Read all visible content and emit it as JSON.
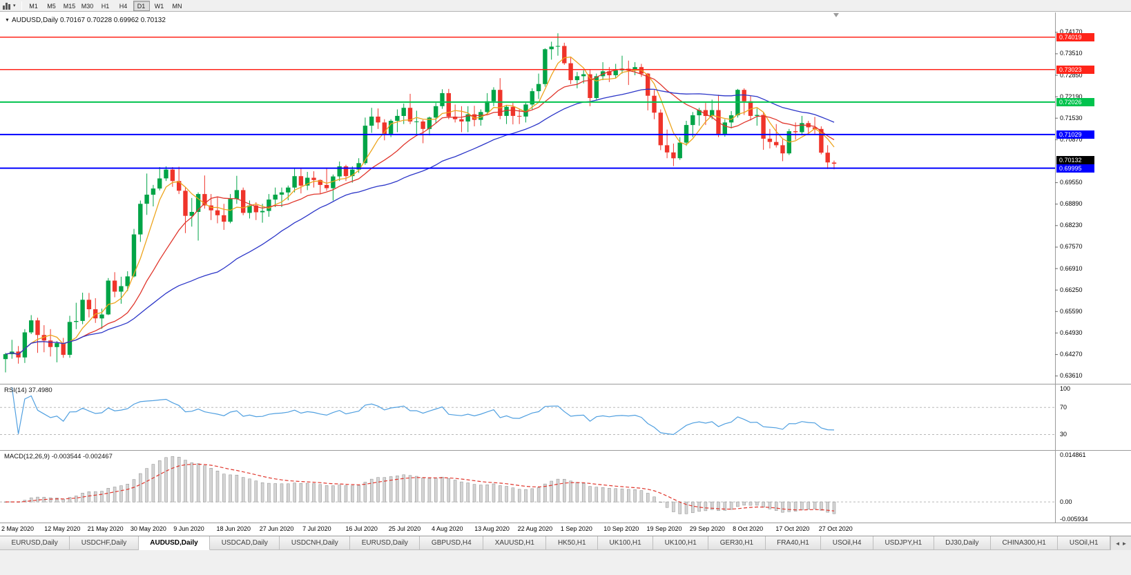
{
  "toolbar": {
    "timeframes": [
      "M1",
      "M5",
      "M15",
      "M30",
      "H1",
      "H4",
      "D1",
      "W1",
      "MN"
    ],
    "active_timeframe": "D1"
  },
  "chart": {
    "symbol_title": "AUDUSD,Daily",
    "ohlc_text": "0.70167 0.70228 0.69962 0.70132"
  },
  "chart_data": {
    "type": "candlestick",
    "title": "AUDUSD,Daily",
    "last_bar": {
      "open": "0.70167",
      "high": "0.70228",
      "low": "0.69962",
      "close": "0.70132"
    },
    "y_axis": {
      "range": [
        0.6337,
        0.7478
      ],
      "ticks": [
        "0.74170",
        "0.73510",
        "0.72850",
        "0.72190",
        "0.71530",
        "0.70870",
        "0.69550",
        "0.68890",
        "0.68230",
        "0.67570",
        "0.66910",
        "0.66250",
        "0.65590",
        "0.64930",
        "0.64270",
        "0.63610"
      ]
    },
    "x_axis": {
      "date_labels": [
        "2 May 2020",
        "12 May 2020",
        "21 May 2020",
        "30 May 2020",
        "9 Jun 2020",
        "18 Jun 2020",
        "27 Jun 2020",
        "7 Jul 2020",
        "16 Jul 2020",
        "25 Jul 2020",
        "4 Aug 2020",
        "13 Aug 2020",
        "22 Aug 2020",
        "1 Sep 2020",
        "10 Sep 2020",
        "19 Sep 2020",
        "29 Sep 2020",
        "8 Oct 2020",
        "17 Oct 2020",
        "27 Oct 2020"
      ]
    },
    "levels": [
      {
        "value": 0.74019,
        "label": "0.74019",
        "color": "#ff2419",
        "type": "resistance"
      },
      {
        "value": 0.73023,
        "label": "0.73023",
        "color": "#ff2419",
        "type": "resistance"
      },
      {
        "value": 0.72026,
        "label": "0.72026",
        "color": "#00c34d",
        "type": "pivot"
      },
      {
        "value": 0.71029,
        "label": "0.71029",
        "color": "#0000ff",
        "type": "support"
      },
      {
        "value": 0.69995,
        "label": "0.69995",
        "color": "#0000ff",
        "type": "support"
      }
    ],
    "current_price": {
      "value": 0.70132,
      "label": "0.70132",
      "color": "#000000"
    },
    "moving_averages": [
      {
        "period": 5,
        "color": "#eda41c"
      },
      {
        "period": 13,
        "color": "#e0352b"
      },
      {
        "period": 34,
        "color": "#2b35c8"
      }
    ],
    "candles": [
      [
        0.6413,
        0.6432,
        0.6372,
        0.6428
      ],
      [
        0.6428,
        0.6472,
        0.6414,
        0.6436
      ],
      [
        0.6436,
        0.6453,
        0.6399,
        0.6418
      ],
      [
        0.6418,
        0.6505,
        0.6401,
        0.6495
      ],
      [
        0.6495,
        0.6548,
        0.649,
        0.6532
      ],
      [
        0.6532,
        0.654,
        0.6432,
        0.6487
      ],
      [
        0.6487,
        0.6517,
        0.6434,
        0.647
      ],
      [
        0.647,
        0.6505,
        0.6421,
        0.645
      ],
      [
        0.645,
        0.6468,
        0.6403,
        0.6462
      ],
      [
        0.6462,
        0.6478,
        0.6417,
        0.6426
      ],
      [
        0.6426,
        0.6546,
        0.6417,
        0.6527
      ],
      [
        0.6527,
        0.6586,
        0.6505,
        0.653
      ],
      [
        0.653,
        0.6617,
        0.652,
        0.6595
      ],
      [
        0.6595,
        0.6616,
        0.6541,
        0.6566
      ],
      [
        0.6566,
        0.66,
        0.6524,
        0.6538
      ],
      [
        0.6538,
        0.6568,
        0.6506,
        0.655
      ],
      [
        0.655,
        0.6662,
        0.6548,
        0.6654
      ],
      [
        0.6654,
        0.668,
        0.6603,
        0.662
      ],
      [
        0.662,
        0.6666,
        0.6583,
        0.6637
      ],
      [
        0.6637,
        0.6683,
        0.6622,
        0.6667
      ],
      [
        0.6667,
        0.6813,
        0.6664,
        0.6796
      ],
      [
        0.6796,
        0.69,
        0.6773,
        0.689
      ],
      [
        0.689,
        0.6983,
        0.6856,
        0.6918
      ],
      [
        0.6918,
        0.6948,
        0.6882,
        0.6937
      ],
      [
        0.6937,
        0.7003,
        0.6931,
        0.6968
      ],
      [
        0.6968,
        0.7005,
        0.696,
        0.6995
      ],
      [
        0.6995,
        0.7003,
        0.6942,
        0.696
      ],
      [
        0.696,
        0.7004,
        0.692,
        0.693
      ],
      [
        0.693,
        0.694,
        0.68,
        0.6853
      ],
      [
        0.6853,
        0.6908,
        0.682,
        0.6865
      ],
      [
        0.6865,
        0.6925,
        0.6777,
        0.692
      ],
      [
        0.692,
        0.6977,
        0.6875,
        0.6885
      ],
      [
        0.6885,
        0.692,
        0.684,
        0.687
      ],
      [
        0.687,
        0.691,
        0.683,
        0.6855
      ],
      [
        0.6855,
        0.689,
        0.681,
        0.6835
      ],
      [
        0.6835,
        0.692,
        0.683,
        0.6905
      ],
      [
        0.6905,
        0.6976,
        0.689,
        0.6932
      ],
      [
        0.6932,
        0.694,
        0.6855,
        0.6862
      ],
      [
        0.6862,
        0.69,
        0.6845,
        0.6885
      ],
      [
        0.6885,
        0.6895,
        0.684,
        0.6864
      ],
      [
        0.6864,
        0.689,
        0.6832,
        0.6868
      ],
      [
        0.6868,
        0.692,
        0.685,
        0.6903
      ],
      [
        0.6903,
        0.694,
        0.688,
        0.6918
      ],
      [
        0.6918,
        0.694,
        0.688,
        0.6925
      ],
      [
        0.6925,
        0.6946,
        0.6901,
        0.694
      ],
      [
        0.694,
        0.6998,
        0.6925,
        0.6975
      ],
      [
        0.6975,
        0.6998,
        0.6922,
        0.6946
      ],
      [
        0.6946,
        0.6988,
        0.6932,
        0.697
      ],
      [
        0.697,
        0.699,
        0.694,
        0.6963
      ],
      [
        0.6963,
        0.6965,
        0.692,
        0.6948
      ],
      [
        0.6948,
        0.7,
        0.693,
        0.6938
      ],
      [
        0.6938,
        0.698,
        0.69,
        0.6974
      ],
      [
        0.6974,
        0.702,
        0.696,
        0.7005
      ],
      [
        0.7005,
        0.701,
        0.696,
        0.6975
      ],
      [
        0.6975,
        0.7005,
        0.6955,
        0.6995
      ],
      [
        0.6995,
        0.703,
        0.6985,
        0.7015
      ],
      [
        0.7015,
        0.7155,
        0.701,
        0.713
      ],
      [
        0.713,
        0.7185,
        0.7108,
        0.7158
      ],
      [
        0.7158,
        0.7183,
        0.712,
        0.714
      ],
      [
        0.714,
        0.715,
        0.7085,
        0.7105
      ],
      [
        0.7105,
        0.715,
        0.7095,
        0.7145
      ],
      [
        0.7145,
        0.718,
        0.711,
        0.716
      ],
      [
        0.716,
        0.7198,
        0.7135,
        0.7185
      ],
      [
        0.7185,
        0.7228,
        0.7135,
        0.7143
      ],
      [
        0.7143,
        0.7176,
        0.7103,
        0.7143
      ],
      [
        0.7143,
        0.7148,
        0.7076,
        0.712
      ],
      [
        0.712,
        0.7158,
        0.71,
        0.7155
      ],
      [
        0.7155,
        0.72,
        0.7138,
        0.719
      ],
      [
        0.719,
        0.7242,
        0.7182,
        0.723
      ],
      [
        0.723,
        0.7243,
        0.715,
        0.7158
      ],
      [
        0.7158,
        0.7195,
        0.714,
        0.715
      ],
      [
        0.715,
        0.719,
        0.711,
        0.7143
      ],
      [
        0.7143,
        0.719,
        0.711,
        0.7165
      ],
      [
        0.7165,
        0.7191,
        0.7128,
        0.7148
      ],
      [
        0.7148,
        0.718,
        0.713,
        0.7172
      ],
      [
        0.7172,
        0.723,
        0.7165,
        0.7205
      ],
      [
        0.7205,
        0.7248,
        0.719,
        0.724
      ],
      [
        0.724,
        0.7276,
        0.715,
        0.716
      ],
      [
        0.716,
        0.7192,
        0.7135,
        0.7188
      ],
      [
        0.7188,
        0.72,
        0.7134,
        0.716
      ],
      [
        0.716,
        0.718,
        0.7135,
        0.7158
      ],
      [
        0.7158,
        0.72,
        0.714,
        0.7195
      ],
      [
        0.7195,
        0.7245,
        0.718,
        0.7236
      ],
      [
        0.7236,
        0.729,
        0.7212,
        0.7258
      ],
      [
        0.7258,
        0.7368,
        0.725,
        0.7365
      ],
      [
        0.7365,
        0.7388,
        0.7333,
        0.7373
      ],
      [
        0.7373,
        0.7414,
        0.7345,
        0.7375
      ],
      [
        0.7375,
        0.7385,
        0.7317,
        0.7322
      ],
      [
        0.7322,
        0.734,
        0.7258,
        0.727
      ],
      [
        0.727,
        0.7295,
        0.7245,
        0.7282
      ],
      [
        0.7282,
        0.73,
        0.726,
        0.7288
      ],
      [
        0.7288,
        0.7302,
        0.719,
        0.7215
      ],
      [
        0.7215,
        0.729,
        0.721,
        0.7282
      ],
      [
        0.7282,
        0.7325,
        0.727,
        0.7297
      ],
      [
        0.7297,
        0.731,
        0.7264,
        0.7285
      ],
      [
        0.7285,
        0.732,
        0.7275,
        0.73
      ],
      [
        0.73,
        0.7345,
        0.729,
        0.7305
      ],
      [
        0.7305,
        0.733,
        0.7255,
        0.73
      ],
      [
        0.73,
        0.7325,
        0.7285,
        0.731
      ],
      [
        0.731,
        0.732,
        0.728,
        0.729
      ],
      [
        0.729,
        0.7292,
        0.7177,
        0.7222
      ],
      [
        0.7222,
        0.724,
        0.715,
        0.717
      ],
      [
        0.717,
        0.718,
        0.7055,
        0.707
      ],
      [
        0.707,
        0.7118,
        0.703,
        0.7048
      ],
      [
        0.7048,
        0.7075,
        0.7006,
        0.703
      ],
      [
        0.703,
        0.7095,
        0.7025,
        0.7078
      ],
      [
        0.7078,
        0.7145,
        0.7068,
        0.7132
      ],
      [
        0.7132,
        0.7172,
        0.7095,
        0.7162
      ],
      [
        0.7162,
        0.7185,
        0.713,
        0.7178
      ],
      [
        0.7178,
        0.72,
        0.7132,
        0.716
      ],
      [
        0.716,
        0.721,
        0.715,
        0.7178
      ],
      [
        0.7178,
        0.7225,
        0.7095,
        0.7105
      ],
      [
        0.7105,
        0.715,
        0.7096,
        0.714
      ],
      [
        0.714,
        0.7175,
        0.7122,
        0.7162
      ],
      [
        0.7162,
        0.7243,
        0.7155,
        0.724
      ],
      [
        0.724,
        0.7245,
        0.7163,
        0.7205
      ],
      [
        0.7205,
        0.7222,
        0.7146,
        0.716
      ],
      [
        0.716,
        0.7183,
        0.713,
        0.7163
      ],
      [
        0.7163,
        0.717,
        0.7056,
        0.709
      ],
      [
        0.709,
        0.712,
        0.706,
        0.708
      ],
      [
        0.708,
        0.7135,
        0.7063,
        0.707
      ],
      [
        0.707,
        0.709,
        0.7021,
        0.7045
      ],
      [
        0.7045,
        0.712,
        0.704,
        0.7113
      ],
      [
        0.7113,
        0.714,
        0.7087,
        0.711
      ],
      [
        0.711,
        0.716,
        0.71,
        0.7138
      ],
      [
        0.7138,
        0.7145,
        0.7103,
        0.7125
      ],
      [
        0.7125,
        0.7157,
        0.7105,
        0.712
      ],
      [
        0.712,
        0.7128,
        0.7042,
        0.7047
      ],
      [
        0.7047,
        0.707,
        0.6997,
        0.7017
      ],
      [
        0.70167,
        0.70228,
        0.69962,
        0.70132
      ]
    ]
  },
  "rsi_panel": {
    "label": "RSI(14) 37.4980",
    "period": 14,
    "value": "37.4980",
    "range": [
      8,
      104
    ],
    "ticks": [
      {
        "label": "100",
        "value": 100
      },
      {
        "label": "70",
        "value": 70
      },
      {
        "label": "30",
        "value": 30
      }
    ],
    "level_lines": [
      70,
      30
    ],
    "line_color": "#4f9fe0"
  },
  "macd_panel": {
    "label": "MACD(12,26,9) -0.003544 -0.002467",
    "params": "12,26,9",
    "values": [
      "-0.003544",
      "-0.002467"
    ],
    "range": [
      -0.006,
      0.0149
    ],
    "ticks": [
      {
        "label": "0.014861",
        "value": 0.014861
      },
      {
        "label": "0.00",
        "value": 0
      },
      {
        "label": "-0.005934",
        "value": -0.005934
      }
    ],
    "histogram_color": "#d4d4d4",
    "histogram_border": "#8c8c8c",
    "signal_color": "#e0352b"
  },
  "colors": {
    "bull": "#00a447",
    "bear": "#ef342a",
    "separator": "#9a9a9a",
    "grid_dash": "#b8b8b8"
  },
  "tabs": {
    "items": [
      "EURUSD,Daily",
      "USDCHF,Daily",
      "AUDUSD,Daily",
      "USDCAD,Daily",
      "USDCNH,Daily",
      "EURUSD,Daily",
      "GBPUSD,H4",
      "XAUUSD,H1",
      "HK50,H1",
      "UK100,H1",
      "UK100,H1",
      "GER30,H1",
      "FRA40,H1",
      "USOil,H4",
      "USDJPY,H1",
      "DJ30,Daily",
      "CHINA300,H1",
      "USOil,H1"
    ],
    "active_index": 2,
    "scroll_left_icon": "◄",
    "scroll_right_icon": "►"
  }
}
